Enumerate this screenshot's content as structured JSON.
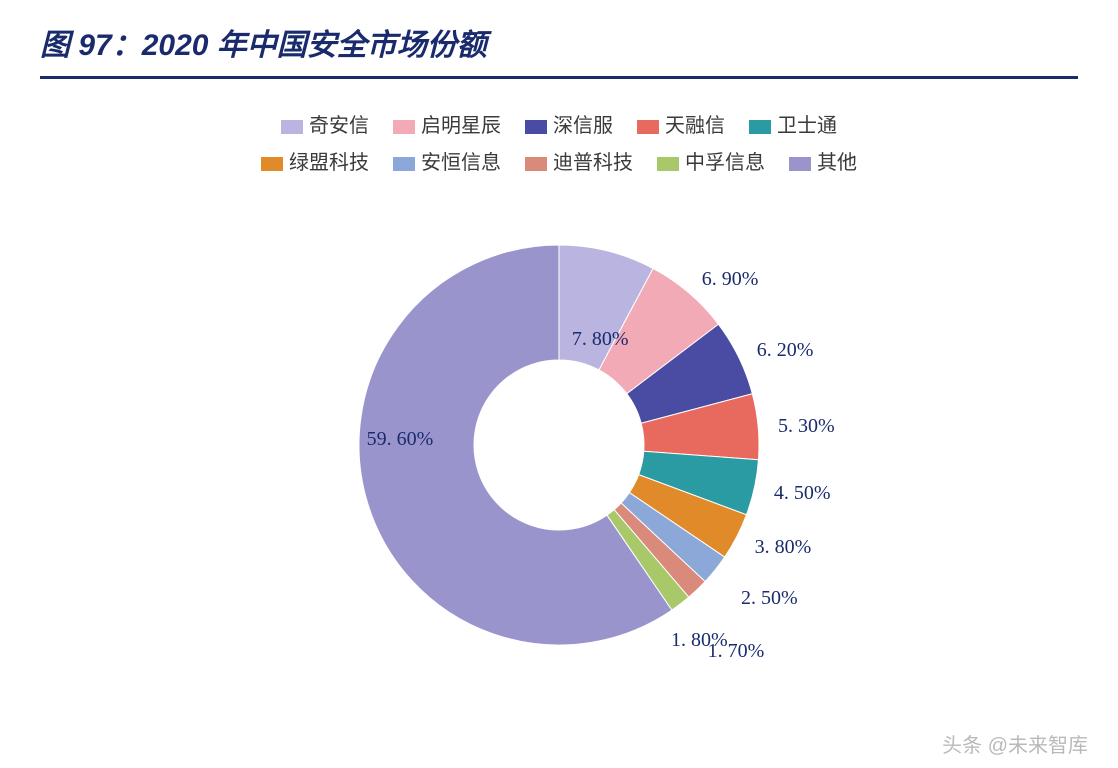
{
  "title": "图 97：2020 年中国安全市场份额",
  "chart": {
    "type": "donut",
    "inner_radius": 85,
    "outer_radius": 200,
    "background_color": "#ffffff",
    "title_color": "#1a2b6d",
    "title_fontsize": 30,
    "label_color": "#1a2b6d",
    "label_fontsize": 20,
    "start_angle_deg": -90,
    "series": [
      {
        "name": "奇安信",
        "value": 7.8,
        "label": "7. 80%",
        "color": "#b9b4e0"
      },
      {
        "name": "启明星辰",
        "value": 6.9,
        "label": "6. 90%",
        "color": "#f2aab6"
      },
      {
        "name": "深信服",
        "value": 6.2,
        "label": "6. 20%",
        "color": "#4a4ba3"
      },
      {
        "name": "天融信",
        "value": 5.3,
        "label": "5. 30%",
        "color": "#e86a5f"
      },
      {
        "name": "卫士通",
        "value": 4.5,
        "label": "4. 50%",
        "color": "#2a9aa3"
      },
      {
        "name": "绿盟科技",
        "value": 3.8,
        "label": "3. 80%",
        "color": "#e08a2a"
      },
      {
        "name": "安恒信息",
        "value": 2.5,
        "label": "2. 50%",
        "color": "#8ca8d8"
      },
      {
        "name": "迪普科技",
        "value": 1.8,
        "label": "1. 80%",
        "color": "#d98a7a"
      },
      {
        "name": "中孚信息",
        "value": 1.7,
        "label": "1. 70%",
        "color": "#a8c86a"
      },
      {
        "name": "其他",
        "value": 59.6,
        "label": "59. 60%",
        "color": "#9a94cd"
      }
    ],
    "legend_rows": [
      [
        "奇安信",
        "启明星辰",
        "深信服",
        "天融信",
        "卫士通"
      ],
      [
        "绿盟科技",
        "安恒信息",
        "迪普科技",
        "中孚信息",
        "其他"
      ]
    ]
  },
  "watermark": "头条 @未来智库"
}
